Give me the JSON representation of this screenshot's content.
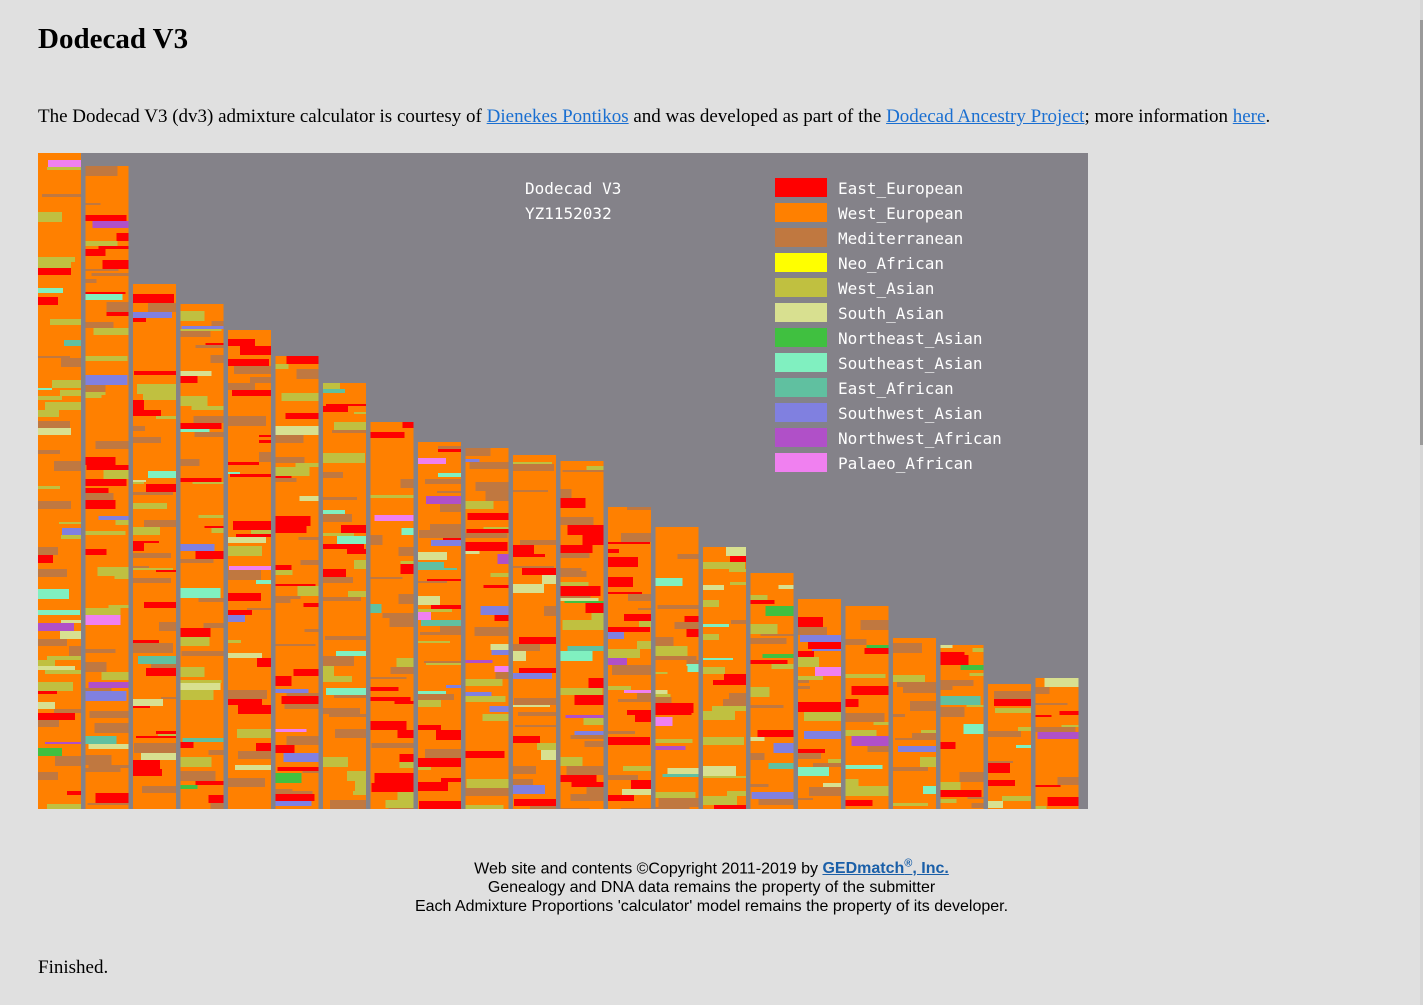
{
  "page": {
    "title": "Dodecad V3",
    "intro": {
      "part1": "The Dodecad V3 (dv3) admixture calculator is courtesy of ",
      "link1": "Dienekes Pontikos",
      "part2": " and was developed as part of the ",
      "link2": "Dodecad Ancestry Project",
      "part3": "; more information ",
      "link3": "here",
      "part4": "."
    },
    "finished": "Finished."
  },
  "chart_data": {
    "type": "area",
    "title": "Dodecad V3",
    "subtitle": "YZ1152032",
    "background": "#848289",
    "chromosome_count": 22,
    "chromosome_relative_lengths": [
      1.0,
      0.98,
      0.8,
      0.77,
      0.73,
      0.69,
      0.65,
      0.59,
      0.56,
      0.55,
      0.54,
      0.53,
      0.46,
      0.43,
      0.4,
      0.36,
      0.32,
      0.31,
      0.26,
      0.25,
      0.19,
      0.2
    ],
    "series": [
      {
        "name": "East_European",
        "color": "#ff0000"
      },
      {
        "name": "West_European",
        "color": "#ff8000"
      },
      {
        "name": "Mediterranean",
        "color": "#c07840"
      },
      {
        "name": "Neo_African",
        "color": "#ffff00"
      },
      {
        "name": "West_Asian",
        "color": "#c0c040"
      },
      {
        "name": "South_Asian",
        "color": "#d8e090"
      },
      {
        "name": "Northeast_Asian",
        "color": "#40c040"
      },
      {
        "name": "Southeast_Asian",
        "color": "#80f0c0"
      },
      {
        "name": "East_African",
        "color": "#60c0a0"
      },
      {
        "name": "Southwest_Asian",
        "color": "#8080e0"
      },
      {
        "name": "Northwest_African",
        "color": "#b050c8"
      },
      {
        "name": "Palaeo_African",
        "color": "#f080f0"
      }
    ]
  },
  "footer": {
    "copyright_prefix": "Web site and contents ©Copyright 2011-2019 by ",
    "company_link": "GEDmatch",
    "company_sup": "®",
    "company_suffix": ", Inc.",
    "line2": "Genealogy and DNA data remains the property of the submitter",
    "line3": "Each Admixture Proportions 'calculator' model remains the property of its developer."
  },
  "colors": {
    "background": "#e0e0e0",
    "link": "#1a6fd1",
    "footer_link": "#1a5fa8"
  }
}
